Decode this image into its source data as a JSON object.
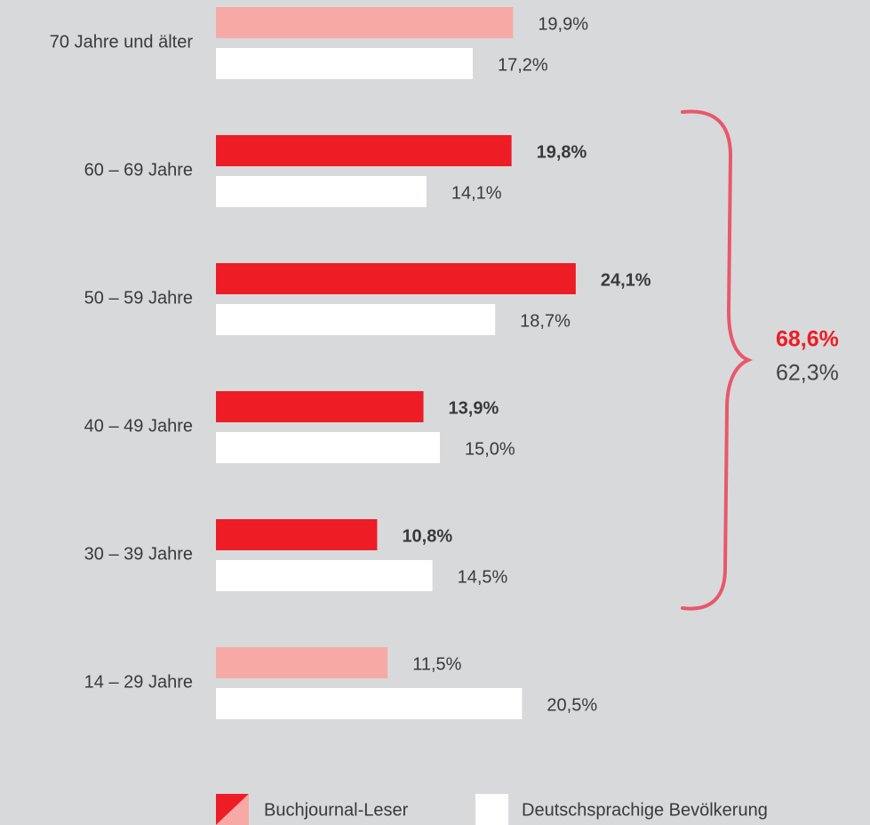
{
  "chart_data": {
    "type": "barh",
    "categories": [
      "70 Jahre und älter",
      "60 – 69 Jahre",
      "50 – 59 Jahre",
      "40 – 49 Jahre",
      "30 – 39 Jahre",
      "14 – 29 Jahre"
    ],
    "series": [
      {
        "name": "Buchjournal-Leser",
        "color": "#ee1c25",
        "colors": [
          "#f7aaa5",
          "#ee1c25",
          "#ee1c25",
          "#ee1c25",
          "#ee1c25",
          "#f7aaa5"
        ],
        "values": [
          19.9,
          19.8,
          24.1,
          13.9,
          10.8,
          11.5
        ],
        "value_labels": [
          "19,9%",
          "19,8%",
          "24,1%",
          "13,9%",
          "10,8%",
          "11,5%"
        ]
      },
      {
        "name": "Deutschsprachige Bevölkerung",
        "color": "#ffffff",
        "values": [
          17.2,
          14.1,
          18.7,
          15.0,
          14.5,
          20.5
        ],
        "value_labels": [
          "17,2%",
          "14,1%",
          "18,7%",
          "15,0%",
          "14,5%",
          "20,5%"
        ]
      }
    ],
    "annotations": [
      {
        "label": "68,6%",
        "color": "#ee1c25"
      },
      {
        "label": "62,3%",
        "color": "#444444"
      }
    ]
  }
}
